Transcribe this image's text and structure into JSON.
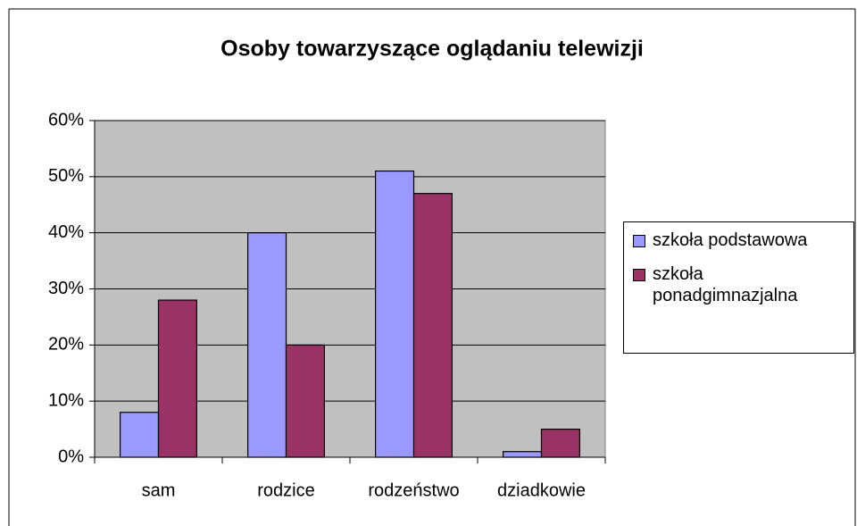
{
  "chart_data": {
    "type": "bar",
    "title": "Osoby towarzyszące oglądaniu telewizji",
    "categories": [
      "sam",
      "rodzice",
      "rodzeństwo",
      "dziadkowie"
    ],
    "series": [
      {
        "name": "szkoła podstawowa",
        "color": "#9999ff",
        "values": [
          8,
          40,
          51,
          1
        ]
      },
      {
        "name": "szkoła ponadgimnazjalna",
        "color": "#993366",
        "values": [
          28,
          20,
          47,
          5
        ]
      }
    ],
    "ylim": [
      0,
      60
    ],
    "yticks": [
      {
        "value": 0,
        "label": "0%"
      },
      {
        "value": 10,
        "label": "10%"
      },
      {
        "value": 20,
        "label": "20%"
      },
      {
        "value": 30,
        "label": "30%"
      },
      {
        "value": 40,
        "label": "40%"
      },
      {
        "value": 50,
        "label": "50%"
      },
      {
        "value": 60,
        "label": "60%"
      }
    ],
    "grid": true,
    "legend": "right"
  }
}
